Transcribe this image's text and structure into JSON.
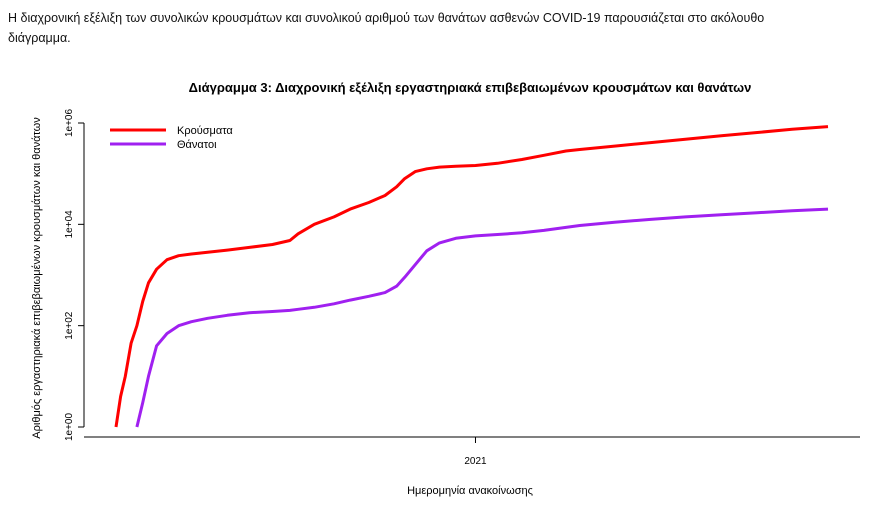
{
  "intro": {
    "line1": "Η διαχρονική εξέλιξη των συνολικών κρουσμάτων και συνολικού αριθμού των θανάτων ασθενών COVID-19 παρουσιάζεται στο ακόλουθο",
    "line2": "διάγραμμα."
  },
  "chart_data": {
    "type": "line",
    "title": "Διάγραμμα 3: Διαχρονική εξέλιξη εργαστηριακά επιβεβαιωμένων κρουσμάτων και θανάτων",
    "xlabel": "Ημερομηνία ανακοίνωσης",
    "ylabel": "Αριθμός εργαστηριακά επιβεβαιωμένων κρουσμάτων και θανάτων",
    "y_scale": "log10",
    "ylim": [
      1,
      1000000
    ],
    "y_ticks": [
      "1e+00",
      "1e+02",
      "1e+04",
      "1e+06"
    ],
    "x_ticks": [
      "2021"
    ],
    "x": [
      "2020-02-26",
      "2020-03-01",
      "2020-03-05",
      "2020-03-10",
      "2020-03-15",
      "2020-03-20",
      "2020-03-25",
      "2020-04-01",
      "2020-04-10",
      "2020-04-20",
      "2020-05-01",
      "2020-05-15",
      "2020-06-01",
      "2020-06-20",
      "2020-07-10",
      "2020-07-25",
      "2020-08-01",
      "2020-08-15",
      "2020-09-01",
      "2020-09-15",
      "2020-10-01",
      "2020-10-15",
      "2020-10-25",
      "2020-11-01",
      "2020-11-10",
      "2020-11-20",
      "2020-12-01",
      "2020-12-15",
      "2021-01-01",
      "2021-01-20",
      "2021-02-10",
      "2021-03-01",
      "2021-03-20",
      "2021-04-01",
      "2021-05-01",
      "2021-06-01",
      "2021-07-01",
      "2021-08-01",
      "2021-09-01",
      "2021-10-01",
      "2021-11-01"
    ],
    "series": [
      {
        "name": "Κρούσματα",
        "color": "#ff0000",
        "values": [
          1,
          4,
          10,
          45,
          100,
          300,
          700,
          1300,
          2000,
          2400,
          2600,
          2800,
          3100,
          3500,
          4000,
          4800,
          6500,
          10000,
          14000,
          20000,
          27000,
          37000,
          55000,
          80000,
          110000,
          125000,
          135000,
          140000,
          145000,
          160000,
          190000,
          230000,
          280000,
          300000,
          350000,
          410000,
          480000,
          560000,
          650000,
          750000,
          850000
        ]
      },
      {
        "name": "Θάνατοι",
        "color": "#a020f0",
        "values": [
          null,
          null,
          null,
          null,
          1,
          3,
          10,
          40,
          70,
          100,
          120,
          140,
          160,
          180,
          190,
          200,
          210,
          230,
          270,
          320,
          380,
          450,
          600,
          900,
          1600,
          3000,
          4300,
          5300,
          5900,
          6300,
          6800,
          7600,
          8700,
          9500,
          11000,
          12500,
          14000,
          15500,
          17000,
          18500,
          20000
        ]
      }
    ],
    "legend_position": "top-left",
    "grid": false
  }
}
